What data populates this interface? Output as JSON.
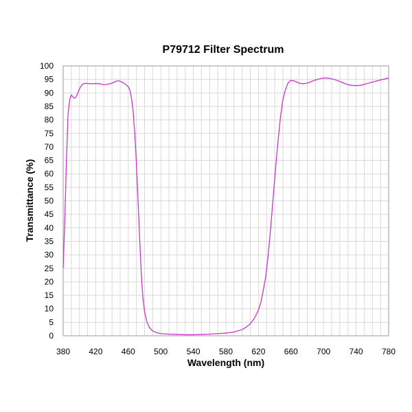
{
  "chart_data": {
    "type": "line",
    "title": "P79712 Filter Spectrum",
    "xlabel": "Wavelength (nm)",
    "ylabel": "Transmittance (%)",
    "xlim": [
      380,
      780
    ],
    "ylim": [
      0,
      100
    ],
    "x_ticks": [
      380,
      420,
      460,
      500,
      540,
      580,
      620,
      660,
      700,
      740,
      780
    ],
    "y_ticks": [
      0,
      5,
      10,
      15,
      20,
      25,
      30,
      35,
      40,
      45,
      50,
      55,
      60,
      65,
      70,
      75,
      80,
      85,
      90,
      95,
      100
    ],
    "grid": true,
    "line_color": "#cc33cc",
    "series": [
      {
        "x": [
          380,
          382,
          384,
          386,
          388,
          390,
          392,
          394,
          396,
          398,
          400,
          403,
          406,
          410,
          415,
          420,
          425,
          430,
          435,
          440,
          445,
          448,
          451,
          454,
          457,
          460,
          462,
          464,
          466,
          468,
          470,
          472,
          474,
          476,
          478,
          480,
          483,
          486,
          490,
          495,
          500,
          510,
          520,
          530,
          540,
          550,
          560,
          570,
          580,
          590,
          600,
          605,
          610,
          615,
          620,
          623,
          626,
          629,
          632,
          635,
          638,
          641,
          644,
          647,
          650,
          653,
          656,
          659,
          662,
          665,
          670,
          675,
          680,
          685,
          690,
          695,
          700,
          705,
          710,
          715,
          720,
          725,
          730,
          735,
          740,
          745,
          750,
          760,
          770,
          780
        ],
        "y": [
          25,
          43,
          65,
          82,
          87.5,
          89.2,
          88.5,
          88,
          88.6,
          90,
          91.5,
          93,
          93.5,
          93.5,
          93.4,
          93.5,
          93.4,
          93,
          93.2,
          93.6,
          94.3,
          94.5,
          94.2,
          93.7,
          93.1,
          92.3,
          91,
          88,
          83,
          75,
          64,
          50,
          36,
          23,
          14,
          9,
          5,
          3,
          1.8,
          1.1,
          0.8,
          0.6,
          0.5,
          0.4,
          0.4,
          0.5,
          0.6,
          0.8,
          1,
          1.4,
          2.3,
          3.2,
          4.5,
          6.5,
          9.5,
          12.5,
          17,
          22,
          30,
          40,
          51,
          62,
          72,
          81,
          87.5,
          91,
          93.5,
          94.5,
          94.6,
          94.3,
          93.6,
          93.4,
          93.6,
          94.2,
          94.8,
          95.2,
          95.5,
          95.5,
          95.2,
          94.8,
          94.2,
          93.6,
          93,
          92.8,
          92.7,
          92.8,
          93.2,
          94,
          94.8,
          95.5
        ]
      }
    ]
  }
}
